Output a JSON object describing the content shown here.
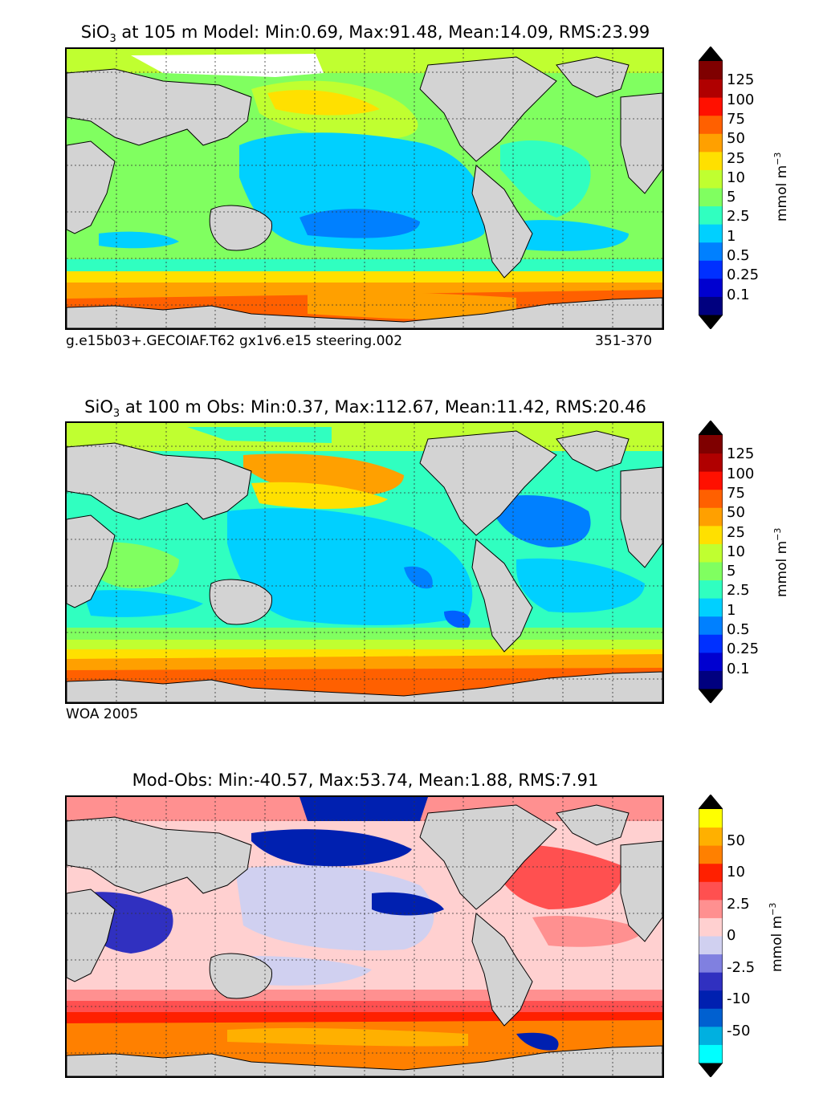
{
  "panels": [
    {
      "id": "model",
      "title_pre": "SiO",
      "title_sub": "3",
      "title_post": " at 105 m Model: Min:0.69, Max:91.48, Mean:14.09, RMS:23.99",
      "caption_left": "g.e15b03+.GECOIAF.T62 gx1v6.e15 steering.002",
      "caption_right": "351-370",
      "units": "mmol m",
      "units_exp": "−3",
      "colorbar": {
        "ticks": [
          "0.1",
          "0.25",
          "0.5",
          "1",
          "2.5",
          "5",
          "10",
          "25",
          "50",
          "75",
          "100",
          "125"
        ],
        "colors": [
          "#00007f",
          "#0000d0",
          "#0030ff",
          "#0080ff",
          "#00d0ff",
          "#30ffc0",
          "#80ff60",
          "#c0ff30",
          "#ffe000",
          "#ffa000",
          "#ff6000",
          "#ff1000",
          "#b00000",
          "#7f0000"
        ],
        "over": "#000000",
        "under": "#000000"
      }
    },
    {
      "id": "obs",
      "title_pre": "SiO",
      "title_sub": "3",
      "title_post": " at 100 m Obs: Min:0.37, Max:112.67, Mean:11.42, RMS:20.46",
      "caption_left": "WOA 2005",
      "caption_right": "",
      "units": "mmol m",
      "units_exp": "−3",
      "colorbar": {
        "ticks": [
          "0.1",
          "0.25",
          "0.5",
          "1",
          "2.5",
          "5",
          "10",
          "25",
          "50",
          "75",
          "100",
          "125"
        ],
        "colors": [
          "#00007f",
          "#0000d0",
          "#0030ff",
          "#0080ff",
          "#00d0ff",
          "#30ffc0",
          "#80ff60",
          "#c0ff30",
          "#ffe000",
          "#ffa000",
          "#ff6000",
          "#ff1000",
          "#b00000",
          "#7f0000"
        ],
        "over": "#000000",
        "under": "#000000"
      }
    },
    {
      "id": "diff",
      "title_pre": "",
      "title_sub": "",
      "title_post": "Mod-Obs: Min:-40.57, Max:53.74, Mean:1.88, RMS:7.91",
      "caption_left": "",
      "caption_right": "",
      "units": "mmol m",
      "units_exp": "−3",
      "colorbar": {
        "ticks": [
          "-50",
          "-10",
          "-2.5",
          "0",
          "2.5",
          "10",
          "50"
        ],
        "colors": [
          "#00ffff",
          "#00b0e0",
          "#0060d0",
          "#0020b0",
          "#3030c0",
          "#8080e0",
          "#d0d0f0",
          "#ffd0d0",
          "#ff9090",
          "#ff5050",
          "#ff2000",
          "#ff8000",
          "#ffb000",
          "#ffff00"
        ],
        "over": "#000000",
        "under": "#000000"
      }
    }
  ],
  "colors": {
    "land": "#d3d3d3",
    "deep_blue": "#0060ff",
    "cyan": "#00d0ff",
    "green": "#80ff60",
    "lime": "#c0ff30",
    "orange": "#ffa000",
    "red_orange": "#ff6000"
  }
}
